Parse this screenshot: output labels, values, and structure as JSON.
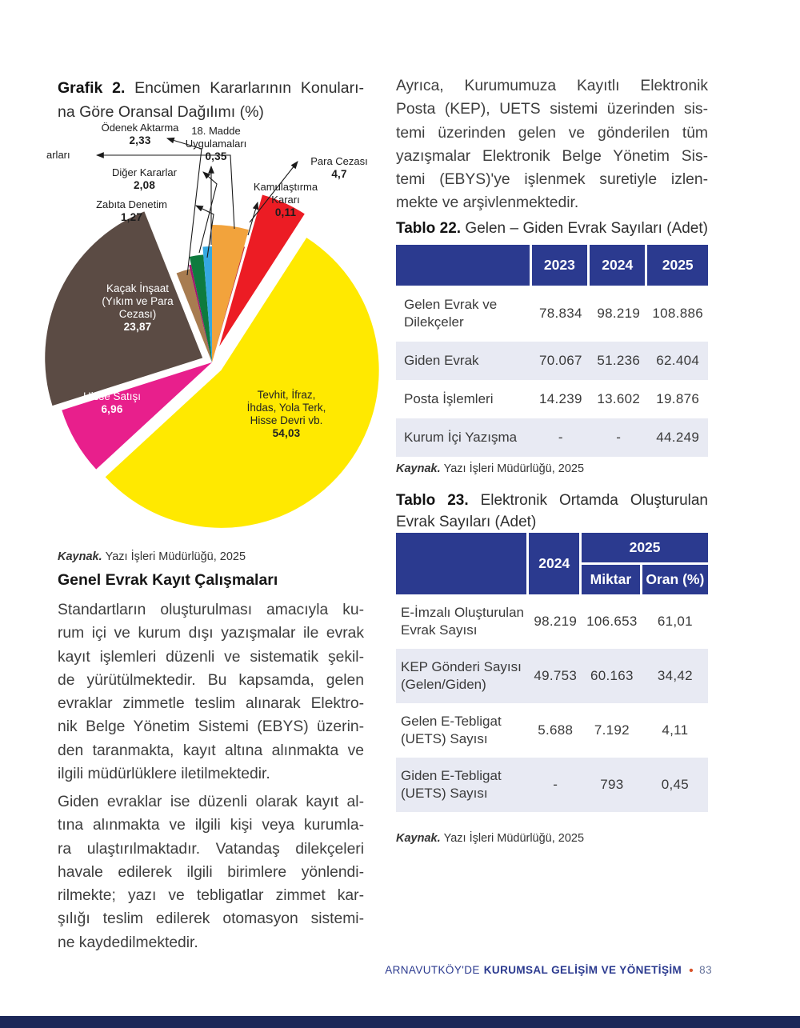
{
  "chart_section": {
    "title_prefix": "Grafik 2.",
    "title_line1_rest": " Encümen Kararlarının Konuları-",
    "title_line2": "na Göre Oransal Dağılımı (%)",
    "source_prefix": "Kaynak.",
    "source_text": "Yazı İşleri Müdürlüğü, 2025"
  },
  "chart_data": {
    "type": "pie",
    "title": "Encümen Kararlarının Konularına Göre Oransal Dağılımı (%)",
    "value_unit": "%",
    "slices": [
      {
        "label": "arları",
        "truncated": true,
        "value": null,
        "display_value": "",
        "color": "#F2A33C",
        "exploded": false,
        "label_lines": [
          "arları"
        ]
      },
      {
        "label": "Kamulaştırma Kararı",
        "value": 0.11,
        "display_value": "0,11",
        "color": "#C1272D",
        "exploded": false,
        "label_lines": [
          "Kamulaştırma",
          "Kararı"
        ]
      },
      {
        "label": "Para Cezası",
        "value": 4.7,
        "display_value": "4,7",
        "color": "#EC1C24",
        "exploded": true,
        "label_lines": [
          "Para Cezası"
        ]
      },
      {
        "label": "Tevhit, İfraz, İhdas, Yola Terk, Hisse Devri vb.",
        "value": 54.03,
        "display_value": "54,03",
        "color": "#FFE900",
        "exploded": true,
        "label_lines": [
          "Tevhit, İfraz,",
          "İhdas, Yola Terk,",
          "Hisse Devri vb."
        ]
      },
      {
        "label": "Hisse Satışı",
        "value": 6.96,
        "display_value": "6,96",
        "color": "#E81F8C",
        "exploded": false,
        "label_lines": [
          "Hisse Satışı"
        ]
      },
      {
        "label": "Kaçak İnşaat (Yıkım ve Para Cezası)",
        "value": 23.87,
        "display_value": "23,87",
        "color": "#5B4B44",
        "exploded": true,
        "label_lines": [
          "Kaçak İnşaat",
          "(Yıkım ve Para",
          "Cezası)"
        ]
      },
      {
        "label": "Ödenek Aktarma",
        "value": 2.33,
        "display_value": "2,33",
        "color": "#A87C50",
        "exploded": false,
        "label_lines": [
          "Ödenek Aktarma"
        ]
      },
      {
        "label": "18. Madde Uygulamaları",
        "value": 0.35,
        "display_value": "0,35",
        "color": "#A3156E",
        "exploded": false,
        "label_lines": [
          "18. Madde",
          "Uygulamaları"
        ]
      },
      {
        "label": "Diğer Kararlar",
        "value": 2.08,
        "display_value": "2,08",
        "color": "#0E7B3E",
        "exploded": false,
        "label_lines": [
          "Diğer Kararlar"
        ]
      },
      {
        "label": "Zabıta Denetim",
        "value": 1.27,
        "display_value": "1,27",
        "color": "#35A8E1",
        "exploded": false,
        "label_lines": [
          "Zabıta Denetim"
        ]
      }
    ]
  },
  "left_column": {
    "heading": "Genel Evrak Kayıt Çalışmaları",
    "paragraph1_lines": [
      "Standartların oluşturulması amacıyla ku-",
      "rum içi ve kurum dışı yazışmalar ile evrak",
      "kayıt işlemleri düzenli ve sistematik şekil-",
      "de yürütülmektedir. Bu kapsamda, gelen",
      "evraklar zimmetle teslim alınarak Elektro-",
      "nik Belge Yönetim Sistemi (EBYS) üzerin-",
      "den taranmakta, kayıt altına alınmakta ve",
      "ilgili müdürlüklere iletilmektedir."
    ],
    "paragraph2_lines": [
      "Giden evraklar ise düzenli olarak kayıt al-",
      "tına alınmakta ve ilgili kişi veya kurumla-",
      "ra ulaştırılmaktadır. Vatandaş dilekçeleri",
      "havale edilerek ilgili birimlere yönlendi-",
      "rilmekte; yazı ve tebligatlar zimmet kar-",
      "şılığı teslim edilerek otomasyon sistemi-",
      "ne kaydedilmektedir."
    ]
  },
  "right_column": {
    "paragraph_lines": [
      "Ayrıca, Kurumumuza Kayıtlı Elektronik",
      "Posta (KEP), UETS sistemi üzerinden sis-",
      "temi üzerinden gelen ve gönderilen tüm",
      "yazışmalar Elektronik Belge Yönetim Sis-",
      "temi (EBYS)'ye işlenmek suretiyle izlen-",
      "mekte ve arşivlenmektedir."
    ],
    "table22": {
      "title_prefix": "Tablo 22.",
      "title_rest": " Gelen – Giden Evrak Sayıları (Adet)",
      "columns": [
        "",
        "2023",
        "2024",
        "2025"
      ],
      "rows": [
        {
          "label": "Gelen Evrak ve Dilekçeler",
          "values": [
            "78.834",
            "98.219",
            "108.886"
          ]
        },
        {
          "label": "Giden Evrak",
          "values": [
            "70.067",
            "51.236",
            "62.404"
          ]
        },
        {
          "label": "Posta İşlemleri",
          "values": [
            "14.239",
            "13.602",
            "19.876"
          ]
        },
        {
          "label": "Kurum İçi Yazışma",
          "values": [
            "-",
            "-",
            "44.249"
          ]
        }
      ],
      "source_prefix": "Kaynak.",
      "source_text": "Yazı İşleri Müdürlüğü, 2025"
    },
    "table23": {
      "title_line1_prefix": "Tablo 23.",
      "title_line1_rest": " Elektronik Ortamda Oluşturulan",
      "title_line2": "Evrak Sayıları (Adet)",
      "col_2024": "2024",
      "col_2025": "2025",
      "col_miktar": "Miktar",
      "col_oran": "Oran (%)",
      "rows": [
        {
          "label": "E-İmzalı Oluşturulan Evrak Sayısı",
          "values": [
            "98.219",
            "106.653",
            "61,01"
          ]
        },
        {
          "label": "KEP Gönderi Sayısı (Gelen/Giden)",
          "values": [
            "49.753",
            "60.163",
            "34,42"
          ]
        },
        {
          "label": "Gelen E-Tebligat (UETS) Sayısı",
          "values": [
            "5.688",
            "7.192",
            "4,11"
          ]
        },
        {
          "label": "Giden E-Tebligat (UETS) Sayısı",
          "values": [
            "-",
            "793",
            "0,45"
          ]
        }
      ],
      "source_prefix": "Kaynak.",
      "source_text": "Yazı İşleri Müdürlüğü, 2025"
    }
  },
  "footer": {
    "location": "ARNAVUTKÖY'DE",
    "section": "KURUMSAL GELİŞİM VE YÖNETİŞİM",
    "bullet": "•",
    "page_number": "83"
  },
  "colors": {
    "table_header_bg": "#2B3A8F",
    "table_alt_row_bg": "#E8EAF3",
    "footer_text": "#2B3A8F",
    "footer_bullet": "#D9542B",
    "bottom_bar": "#1C2758"
  }
}
